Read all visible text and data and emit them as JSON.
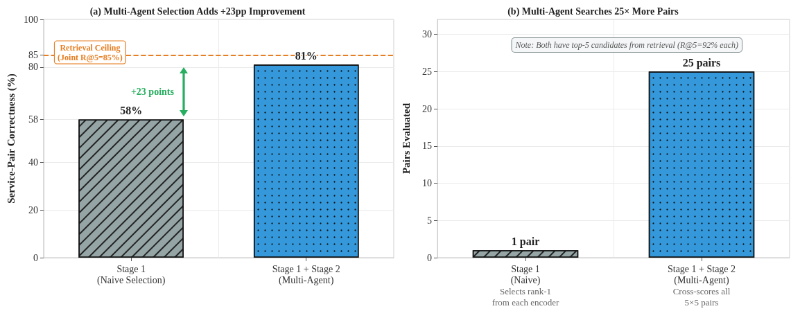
{
  "chart_data": [
    {
      "type": "bar",
      "title": "(a) Multi-Agent Selection Adds +23pp Improvement",
      "ylabel": "Service-Pair Correctness (%)",
      "categories": [
        "Stage 1\n(Naive Selection)",
        "Stage 1 + Stage 2\n(Multi-Agent)"
      ],
      "values": [
        58,
        81
      ],
      "colors": [
        "#95a5a6",
        "#3498db"
      ],
      "value_labels": [
        "58%",
        "81%"
      ],
      "ylim": [
        0,
        100
      ],
      "yticks": [
        0,
        20,
        40,
        58,
        80,
        85,
        100
      ],
      "grid": true,
      "ref_lines": [
        {
          "axis": "y",
          "value": 85,
          "label": "Retrieval Ceiling\n(Joint R@5=85%)",
          "color": "#e67e22",
          "line_style": "dashed"
        }
      ],
      "annotations": [
        "+23 points"
      ]
    },
    {
      "type": "bar",
      "title": "(b) Multi-Agent Searches 25× More Pairs",
      "ylabel": "Pairs Evaluated",
      "categories": [
        "Stage 1\n(Naive)",
        "Stage 1 + Stage 2\n(Multi-Agent)"
      ],
      "values": [
        1,
        25
      ],
      "colors": [
        "#95a5a6",
        "#3498db"
      ],
      "value_labels": [
        "1 pair",
        "25 pairs"
      ],
      "ylim": [
        0,
        32
      ],
      "yticks": [
        0,
        5,
        10,
        15,
        20,
        25,
        30
      ],
      "grid": true,
      "annotations": [
        "Note: Both have top-5 candidates from retrieval (R@5=92% each)",
        "Selects rank-1\nfrom each encoder",
        "Cross-scores all\n5×5 pairs"
      ]
    }
  ]
}
